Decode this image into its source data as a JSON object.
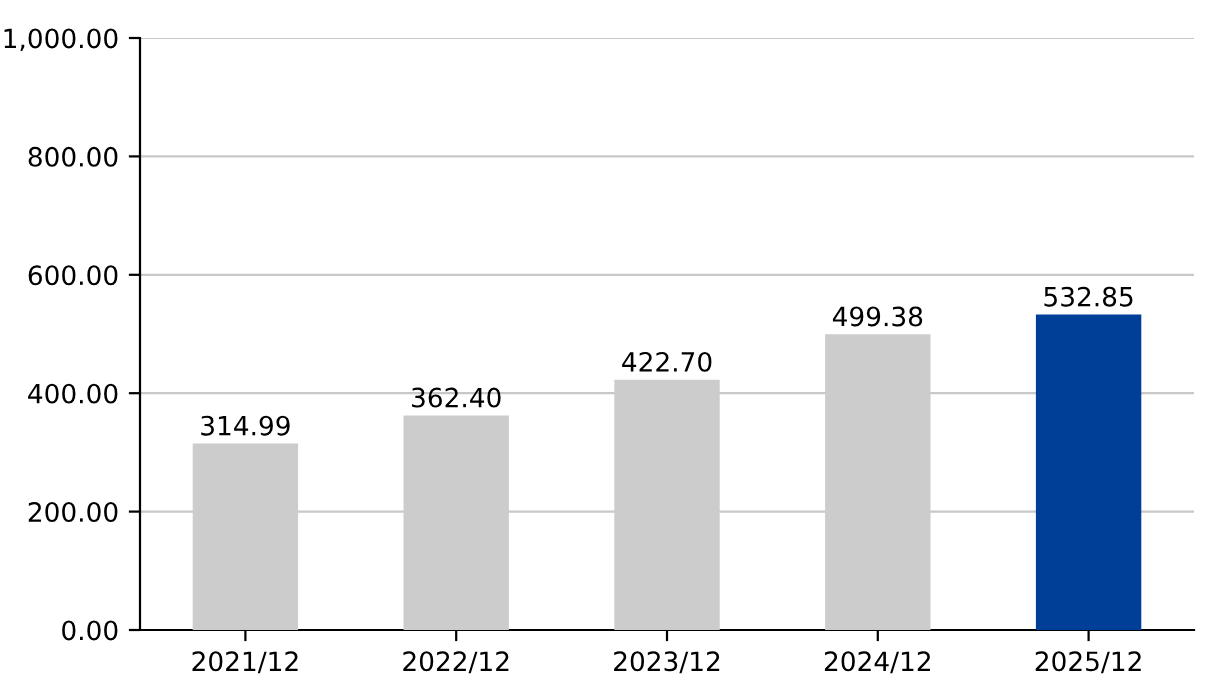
{
  "chart_data": {
    "type": "bar",
    "categories": [
      "2021/12",
      "2022/12",
      "2023/12",
      "2024/12",
      "2025/12"
    ],
    "values": [
      314.99,
      362.4,
      422.7,
      499.38,
      532.85
    ],
    "value_labels": [
      "314.99",
      "362.40",
      "422.70",
      "499.38",
      "532.85"
    ],
    "colors": [
      "#cccccc",
      "#cccccc",
      "#cccccc",
      "#cccccc",
      "#003f98"
    ],
    "ylim": [
      0,
      1000
    ],
    "yticks": [
      {
        "value": 0,
        "label": "0.00"
      },
      {
        "value": 200,
        "label": "200.00"
      },
      {
        "value": 400,
        "label": "400.00"
      },
      {
        "value": 600,
        "label": "600.00"
      },
      {
        "value": 800,
        "label": "800.00"
      },
      {
        "value": 1000,
        "label": "1,000.00"
      }
    ],
    "grid": "y",
    "legend": false
  }
}
